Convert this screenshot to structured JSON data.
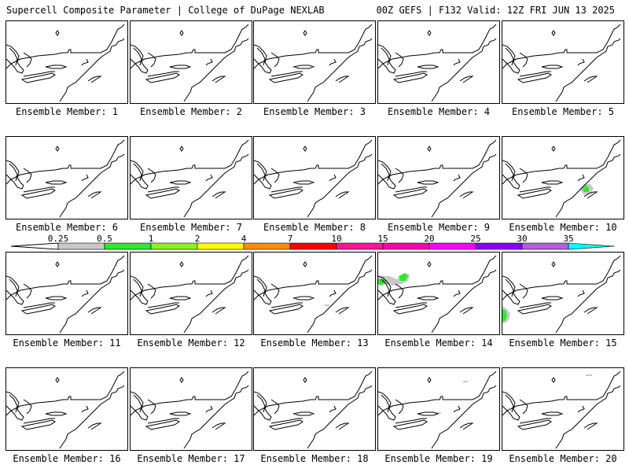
{
  "header": {
    "left": "Supercell Composite Parameter | College of DuPage NEXLAB",
    "right": "00Z GEFS | F132 Valid: 12Z FRI JUN 13 2025"
  },
  "colorbar": {
    "ticks": [
      "0.25",
      "0.5",
      "1",
      "2",
      "4",
      "7",
      "10",
      "15",
      "20",
      "25",
      "30",
      "35"
    ],
    "colors": [
      "#c8c8c8",
      "#2ee82e",
      "#8cf01e",
      "#ffff00",
      "#ff8c00",
      "#ff0000",
      "#ff1493",
      "#ff00aa",
      "#ff00ff",
      "#8a00ff",
      "#b060e0",
      "#00ffff"
    ]
  },
  "panels": [
    {
      "label": "Ensemble Member: 1"
    },
    {
      "label": "Ensemble Member: 2"
    },
    {
      "label": "Ensemble Member: 3"
    },
    {
      "label": "Ensemble Member: 4"
    },
    {
      "label": "Ensemble Member: 5"
    },
    {
      "label": "Ensemble Member: 6"
    },
    {
      "label": "Ensemble Member: 7"
    },
    {
      "label": "Ensemble Member: 8"
    },
    {
      "label": "Ensemble Member: 9"
    },
    {
      "label": "Ensemble Member: 10"
    },
    {
      "label": "Ensemble Member: 11"
    },
    {
      "label": "Ensemble Member: 12"
    },
    {
      "label": "Ensemble Member: 13"
    },
    {
      "label": "Ensemble Member: 14"
    },
    {
      "label": "Ensemble Member: 15"
    },
    {
      "label": "Ensemble Member: 16"
    },
    {
      "label": "Ensemble Member: 17"
    },
    {
      "label": "Ensemble Member: 18"
    },
    {
      "label": "Ensemble Member: 19"
    },
    {
      "label": "Ensemble Member: 20"
    }
  ]
}
